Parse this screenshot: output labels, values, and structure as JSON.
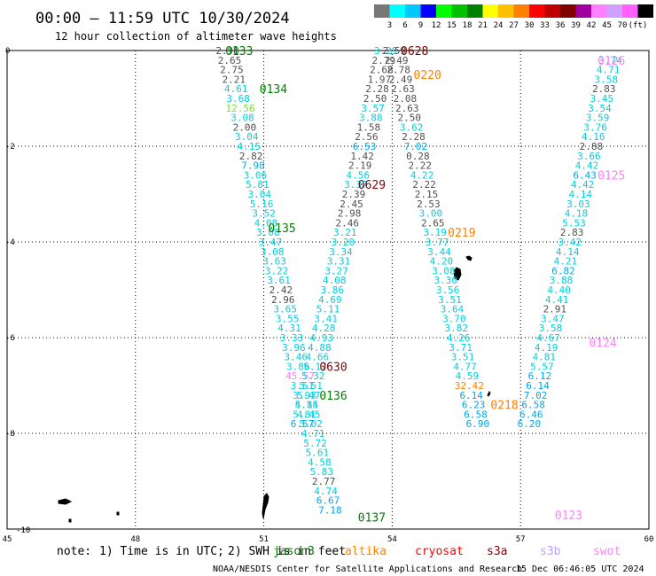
{
  "header": {
    "title": "00:00 — 11:59 UTC 10/30/2024",
    "subtitle": "12 hour collection of altimeter wave heights"
  },
  "colorbar": {
    "colors": [
      "#777777",
      "#00ffff",
      "#00c8ff",
      "#0000ff",
      "#00ff00",
      "#00c000",
      "#008000",
      "#ffff00",
      "#ffc000",
      "#ff8000",
      "#ff0000",
      "#c00000",
      "#800000",
      "#a000a0",
      "#ff80ff",
      "#d0a0ff",
      "#ff60ff",
      "#000000"
    ],
    "labels": [
      "3",
      "6",
      "9",
      "12",
      "15",
      "18",
      "21",
      "24",
      "27",
      "30",
      "33",
      "36",
      "39",
      "42",
      "45",
      "70",
      "(ft)"
    ]
  },
  "axes": {
    "x_ticks": [
      "45",
      "48",
      "51",
      "54",
      "57",
      "60"
    ],
    "y_ticks": [
      "0",
      "-2",
      "-4",
      "-6",
      "-8",
      "-10"
    ]
  },
  "footer": {
    "note_prefix": "note:",
    "note_1": "1) Time is in UTC;",
    "note_2": "2) SWH is in feet",
    "credit": "NOAA/NESDIS Center for Satellite Applications and Research",
    "timestamp": "15 Dec 06:46:05 UTC 2024"
  },
  "legend": [
    {
      "name": "jason3",
      "color": "#008000"
    },
    {
      "name": "altika",
      "color": "#ff8000"
    },
    {
      "name": "cryosat",
      "color": "#ff0000"
    },
    {
      "name": "s3a",
      "color": "#800000"
    },
    {
      "name": "s3b",
      "color": "#c0a0ff"
    },
    {
      "name": "swot",
      "color": "#ff80ff"
    }
  ],
  "passes": [
    {
      "time": "0133",
      "lon": 50.1,
      "lat": 0.0,
      "color": "#008000"
    },
    {
      "time": "0134",
      "lon": 50.9,
      "lat": -0.8,
      "color": "#008000"
    },
    {
      "time": "0135",
      "lon": 51.1,
      "lat": -3.7,
      "color": "#008000"
    },
    {
      "time": "0136",
      "lon": 52.3,
      "lat": -7.2,
      "color": "#008000"
    },
    {
      "time": "0137",
      "lon": 53.2,
      "lat": -9.75,
      "color": "#008000"
    },
    {
      "time": "0628",
      "lon": 54.2,
      "lat": 0.0,
      "color": "#800000"
    },
    {
      "time": "0629",
      "lon": 53.2,
      "lat": -2.8,
      "color": "#800000"
    },
    {
      "time": "0630",
      "lon": 52.3,
      "lat": -6.6,
      "color": "#800000"
    },
    {
      "time": "0220",
      "lon": 54.5,
      "lat": -0.5,
      "color": "#ff8000"
    },
    {
      "time": "0219",
      "lon": 55.3,
      "lat": -3.8,
      "color": "#ff8000"
    },
    {
      "time": "0218",
      "lon": 56.3,
      "lat": -7.4,
      "color": "#ff8000"
    },
    {
      "time": "0126",
      "lon": 58.8,
      "lat": -0.2,
      "color": "#ff80ff"
    },
    {
      "time": "0125",
      "lon": 58.8,
      "lat": -2.6,
      "color": "#ff80ff"
    },
    {
      "time": "0124",
      "lon": 58.6,
      "lat": -6.1,
      "color": "#ff80ff"
    },
    {
      "time": "0123",
      "lon": 57.8,
      "lat": -9.7,
      "color": "#ff80ff"
    }
  ],
  "tracks": [
    {
      "name": "track-1-jason3",
      "points": [
        {
          "lon": 50.15,
          "lat": 0.0,
          "v": "2.98"
        },
        {
          "lon": 50.2,
          "lat": -0.2,
          "v": "2.65"
        },
        {
          "lon": 50.25,
          "lat": -0.4,
          "v": "2.75"
        },
        {
          "lon": 50.3,
          "lat": -0.6,
          "v": "2.21"
        },
        {
          "lon": 50.35,
          "lat": -0.8,
          "v": "4.61"
        },
        {
          "lon": 50.4,
          "lat": -1.0,
          "v": "3.68"
        },
        {
          "lon": 50.45,
          "lat": -1.2,
          "v": "12.56"
        },
        {
          "lon": 50.5,
          "lat": -1.4,
          "v": "3.08"
        },
        {
          "lon": 50.55,
          "lat": -1.6,
          "v": "2.00"
        },
        {
          "lon": 50.6,
          "lat": -1.8,
          "v": "3.04"
        },
        {
          "lon": 50.65,
          "lat": -2.0,
          "v": "4.15"
        },
        {
          "lon": 50.7,
          "lat": -2.2,
          "v": "2.82"
        },
        {
          "lon": 50.75,
          "lat": -2.4,
          "v": "7.98"
        },
        {
          "lon": 50.8,
          "lat": -2.6,
          "v": "3.06"
        },
        {
          "lon": 50.85,
          "lat": -2.8,
          "v": "5.81"
        },
        {
          "lon": 50.9,
          "lat": -3.0,
          "v": "3.04"
        },
        {
          "lon": 50.95,
          "lat": -3.2,
          "v": "5.16"
        },
        {
          "lon": 51.0,
          "lat": -3.4,
          "v": "3.52"
        },
        {
          "lon": 51.05,
          "lat": -3.6,
          "v": "4.08"
        },
        {
          "lon": 51.1,
          "lat": -3.8,
          "v": "3.08"
        },
        {
          "lon": 51.15,
          "lat": -4.0,
          "v": "3.47"
        },
        {
          "lon": 51.2,
          "lat": -4.2,
          "v": "3.08"
        },
        {
          "lon": 51.25,
          "lat": -4.4,
          "v": "3.63"
        },
        {
          "lon": 51.3,
          "lat": -4.6,
          "v": "3.22"
        },
        {
          "lon": 51.35,
          "lat": -4.8,
          "v": "3.61"
        },
        {
          "lon": 51.4,
          "lat": -5.0,
          "v": "2.42"
        },
        {
          "lon": 51.45,
          "lat": -5.2,
          "v": "2.96"
        },
        {
          "lon": 51.5,
          "lat": -5.4,
          "v": "3.65"
        },
        {
          "lon": 51.55,
          "lat": -5.6,
          "v": "3.55"
        },
        {
          "lon": 51.6,
          "lat": -5.8,
          "v": "4.31"
        },
        {
          "lon": 51.65,
          "lat": -6.0,
          "v": "3.33"
        },
        {
          "lon": 51.7,
          "lat": -6.2,
          "v": "3.96"
        },
        {
          "lon": 51.75,
          "lat": -6.4,
          "v": "3.46"
        },
        {
          "lon": 51.8,
          "lat": -6.6,
          "v": "3.86"
        },
        {
          "lon": 51.85,
          "lat": -6.8,
          "v": "45.57"
        },
        {
          "lon": 51.9,
          "lat": -7.0,
          "v": "3.51"
        },
        {
          "lon": 51.95,
          "lat": -7.2,
          "v": "3.93"
        },
        {
          "lon": 52.0,
          "lat": -7.4,
          "v": "5.15"
        },
        {
          "lon": 52.05,
          "lat": -7.6,
          "v": "4.45"
        },
        {
          "lon": 52.1,
          "lat": -7.8,
          "v": "5.02"
        },
        {
          "lon": 52.15,
          "lat": -8.0,
          "v": "4.71"
        },
        {
          "lon": 52.2,
          "lat": -8.2,
          "v": "5.72"
        },
        {
          "lon": 52.25,
          "lat": -8.4,
          "v": "5.61"
        },
        {
          "lon": 52.3,
          "lat": -8.6,
          "v": "4.58"
        },
        {
          "lon": 52.35,
          "lat": -8.8,
          "v": "5.83"
        },
        {
          "lon": 52.4,
          "lat": -9.0,
          "v": "2.77"
        },
        {
          "lon": 52.45,
          "lat": -9.2,
          "v": "4.74"
        },
        {
          "lon": 52.5,
          "lat": -9.4,
          "v": "6.67"
        },
        {
          "lon": 52.55,
          "lat": -9.6,
          "v": "7.18"
        }
      ]
    },
    {
      "name": "track-2-s3a",
      "points": [
        {
          "lon": 53.85,
          "lat": 0.0,
          "v": "3.29"
        },
        {
          "lon": 53.8,
          "lat": -0.2,
          "v": "2.79"
        },
        {
          "lon": 53.75,
          "lat": -0.4,
          "v": "2.68"
        },
        {
          "lon": 53.7,
          "lat": -0.6,
          "v": "1.97"
        },
        {
          "lon": 53.65,
          "lat": -0.8,
          "v": "2.28"
        },
        {
          "lon": 53.6,
          "lat": -1.0,
          "v": "2.50"
        },
        {
          "lon": 53.55,
          "lat": -1.2,
          "v": "3.57"
        },
        {
          "lon": 53.5,
          "lat": -1.4,
          "v": "3.88"
        },
        {
          "lon": 53.45,
          "lat": -1.6,
          "v": "1.58"
        },
        {
          "lon": 53.4,
          "lat": -1.8,
          "v": "2.56"
        },
        {
          "lon": 53.35,
          "lat": -2.0,
          "v": "6.53"
        },
        {
          "lon": 53.3,
          "lat": -2.2,
          "v": "1.42"
        },
        {
          "lon": 53.25,
          "lat": -2.4,
          "v": "2.19"
        },
        {
          "lon": 53.2,
          "lat": -2.6,
          "v": "4.56"
        },
        {
          "lon": 53.15,
          "lat": -2.8,
          "v": "3.37"
        },
        {
          "lon": 53.1,
          "lat": -3.0,
          "v": "2.39"
        },
        {
          "lon": 53.05,
          "lat": -3.2,
          "v": "2.45"
        },
        {
          "lon": 53.0,
          "lat": -3.4,
          "v": "2.98"
        },
        {
          "lon": 52.95,
          "lat": -3.6,
          "v": "2.46"
        },
        {
          "lon": 52.9,
          "lat": -3.8,
          "v": "3.21"
        },
        {
          "lon": 52.85,
          "lat": -4.0,
          "v": "3.20"
        },
        {
          "lon": 52.8,
          "lat": -4.2,
          "v": "3.34"
        },
        {
          "lon": 52.75,
          "lat": -4.4,
          "v": "3.31"
        },
        {
          "lon": 52.7,
          "lat": -4.6,
          "v": "3.27"
        },
        {
          "lon": 52.65,
          "lat": -4.8,
          "v": "4.08"
        },
        {
          "lon": 52.6,
          "lat": -5.0,
          "v": "3.86"
        },
        {
          "lon": 52.55,
          "lat": -5.2,
          "v": "4.69"
        },
        {
          "lon": 52.5,
          "lat": -5.4,
          "v": "5.11"
        },
        {
          "lon": 52.45,
          "lat": -5.6,
          "v": "3.41"
        },
        {
          "lon": 52.4,
          "lat": -5.8,
          "v": "4.28"
        },
        {
          "lon": 52.35,
          "lat": -6.0,
          "v": "4.93"
        },
        {
          "lon": 52.3,
          "lat": -6.2,
          "v": "4.88"
        },
        {
          "lon": 52.25,
          "lat": -6.4,
          "v": "4.66"
        },
        {
          "lon": 52.2,
          "lat": -6.6,
          "v": "5.17"
        },
        {
          "lon": 52.15,
          "lat": -6.8,
          "v": "5.32"
        },
        {
          "lon": 52.1,
          "lat": -7.0,
          "v": "5.51"
        },
        {
          "lon": 52.05,
          "lat": -7.2,
          "v": "5.47"
        },
        {
          "lon": 52.0,
          "lat": -7.4,
          "v": "4.84"
        },
        {
          "lon": 51.95,
          "lat": -7.6,
          "v": "5.81"
        },
        {
          "lon": 51.9,
          "lat": -7.8,
          "v": "6.57"
        }
      ]
    },
    {
      "name": "track-3-altika",
      "points": [
        {
          "lon": 54.05,
          "lat": 0.0,
          "v": "2.59"
        },
        {
          "lon": 54.1,
          "lat": -0.2,
          "v": "2.49"
        },
        {
          "lon": 54.15,
          "lat": -0.4,
          "v": "2.78"
        },
        {
          "lon": 54.2,
          "lat": -0.6,
          "v": "2.49"
        },
        {
          "lon": 54.25,
          "lat": -0.8,
          "v": "2.63"
        },
        {
          "lon": 54.3,
          "lat": -1.0,
          "v": "2.08"
        },
        {
          "lon": 54.35,
          "lat": -1.2,
          "v": "2.63"
        },
        {
          "lon": 54.4,
          "lat": -1.4,
          "v": "2.50"
        },
        {
          "lon": 54.45,
          "lat": -1.6,
          "v": "3.62"
        },
        {
          "lon": 54.5,
          "lat": -1.8,
          "v": "2.28"
        },
        {
          "lon": 54.55,
          "lat": -2.0,
          "v": "7.02"
        },
        {
          "lon": 54.6,
          "lat": -2.2,
          "v": "0.28"
        },
        {
          "lon": 54.65,
          "lat": -2.4,
          "v": "2.22"
        },
        {
          "lon": 54.7,
          "lat": -2.6,
          "v": "4.22"
        },
        {
          "lon": 54.75,
          "lat": -2.8,
          "v": "2.22"
        },
        {
          "lon": 54.8,
          "lat": -3.0,
          "v": "2.15"
        },
        {
          "lon": 54.85,
          "lat": -3.2,
          "v": "2.53"
        },
        {
          "lon": 54.9,
          "lat": -3.4,
          "v": "3.00"
        },
        {
          "lon": 54.95,
          "lat": -3.6,
          "v": "2.65"
        },
        {
          "lon": 55.0,
          "lat": -3.8,
          "v": "3.19"
        },
        {
          "lon": 55.05,
          "lat": -4.0,
          "v": "3.77"
        },
        {
          "lon": 55.1,
          "lat": -4.2,
          "v": "3.44"
        },
        {
          "lon": 55.15,
          "lat": -4.4,
          "v": "4.20"
        },
        {
          "lon": 55.2,
          "lat": -4.6,
          "v": "3.08"
        },
        {
          "lon": 55.25,
          "lat": -4.8,
          "v": "3.30"
        },
        {
          "lon": 55.3,
          "lat": -5.0,
          "v": "3.56"
        },
        {
          "lon": 55.35,
          "lat": -5.2,
          "v": "3.51"
        },
        {
          "lon": 55.4,
          "lat": -5.4,
          "v": "3.64"
        },
        {
          "lon": 55.45,
          "lat": -5.6,
          "v": "3.70"
        },
        {
          "lon": 55.5,
          "lat": -5.8,
          "v": "3.82"
        },
        {
          "lon": 55.55,
          "lat": -6.0,
          "v": "4.26"
        },
        {
          "lon": 55.6,
          "lat": -6.2,
          "v": "3.71"
        },
        {
          "lon": 55.65,
          "lat": -6.4,
          "v": "3.51"
        },
        {
          "lon": 55.7,
          "lat": -6.6,
          "v": "4.77"
        },
        {
          "lon": 55.75,
          "lat": -6.8,
          "v": "4.59"
        },
        {
          "lon": 55.8,
          "lat": -7.0,
          "v": "32.42"
        },
        {
          "lon": 55.85,
          "lat": -7.2,
          "v": "6.14"
        },
        {
          "lon": 55.9,
          "lat": -7.4,
          "v": "6.23"
        },
        {
          "lon": 55.95,
          "lat": -7.6,
          "v": "6.58"
        },
        {
          "lon": 56.0,
          "lat": -7.8,
          "v": "6.90"
        }
      ]
    },
    {
      "name": "track-4-swot",
      "points": [
        {
          "lon": 59.1,
          "lat": -0.2,
          "v": "3.74"
        },
        {
          "lon": 59.05,
          "lat": -0.4,
          "v": "4.71"
        },
        {
          "lon": 59.0,
          "lat": -0.6,
          "v": "3.58"
        },
        {
          "lon": 58.95,
          "lat": -0.8,
          "v": "2.83"
        },
        {
          "lon": 58.9,
          "lat": -1.0,
          "v": "3.45"
        },
        {
          "lon": 58.85,
          "lat": -1.2,
          "v": "3.54"
        },
        {
          "lon": 58.8,
          "lat": -1.4,
          "v": "3.59"
        },
        {
          "lon": 58.75,
          "lat": -1.6,
          "v": "3.76"
        },
        {
          "lon": 58.7,
          "lat": -1.8,
          "v": "4.16"
        },
        {
          "lon": 58.65,
          "lat": -2.0,
          "v": "2.88"
        },
        {
          "lon": 58.6,
          "lat": -2.2,
          "v": "3.66"
        },
        {
          "lon": 58.55,
          "lat": -2.4,
          "v": "4.42"
        },
        {
          "lon": 58.5,
          "lat": -2.6,
          "v": "6.43"
        },
        {
          "lon": 58.45,
          "lat": -2.8,
          "v": "4.42"
        },
        {
          "lon": 58.4,
          "lat": -3.0,
          "v": "4.14"
        },
        {
          "lon": 58.35,
          "lat": -3.2,
          "v": "3.03"
        },
        {
          "lon": 58.3,
          "lat": -3.4,
          "v": "4.18"
        },
        {
          "lon": 58.25,
          "lat": -3.6,
          "v": "5.53"
        },
        {
          "lon": 58.2,
          "lat": -3.8,
          "v": "2.83"
        },
        {
          "lon": 58.15,
          "lat": -4.0,
          "v": "3.42"
        },
        {
          "lon": 58.1,
          "lat": -4.2,
          "v": "4.14"
        },
        {
          "lon": 58.05,
          "lat": -4.4,
          "v": "4.21"
        },
        {
          "lon": 58.0,
          "lat": -4.6,
          "v": "6.82"
        },
        {
          "lon": 57.95,
          "lat": -4.8,
          "v": "3.88"
        },
        {
          "lon": 57.9,
          "lat": -5.0,
          "v": "4.40"
        },
        {
          "lon": 57.85,
          "lat": -5.2,
          "v": "4.41"
        },
        {
          "lon": 57.8,
          "lat": -5.4,
          "v": "2.91"
        },
        {
          "lon": 57.75,
          "lat": -5.6,
          "v": "3.47"
        },
        {
          "lon": 57.7,
          "lat": -5.8,
          "v": "3.58"
        },
        {
          "lon": 57.65,
          "lat": -6.0,
          "v": "4.67"
        },
        {
          "lon": 57.6,
          "lat": -6.2,
          "v": "4.19"
        },
        {
          "lon": 57.55,
          "lat": -6.4,
          "v": "4.81"
        },
        {
          "lon": 57.5,
          "lat": -6.6,
          "v": "5.57"
        },
        {
          "lon": 57.45,
          "lat": -6.8,
          "v": "6.12"
        },
        {
          "lon": 57.4,
          "lat": -7.0,
          "v": "6.14"
        },
        {
          "lon": 57.35,
          "lat": -7.2,
          "v": "7.02"
        },
        {
          "lon": 57.3,
          "lat": -7.4,
          "v": "6.58"
        },
        {
          "lon": 57.25,
          "lat": -7.6,
          "v": "6.46"
        },
        {
          "lon": 57.2,
          "lat": -7.8,
          "v": "6.20"
        }
      ]
    }
  ]
}
